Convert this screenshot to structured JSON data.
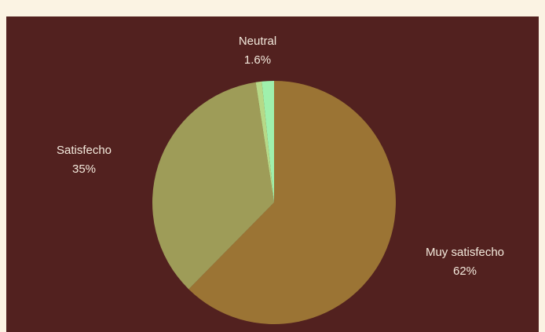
{
  "chart_data": {
    "type": "pie",
    "title": "",
    "start": "top",
    "direction": "clockwise",
    "slices": [
      {
        "label": "Muy satisfecho",
        "value": 62,
        "value_label": "62%",
        "color": "#9b7434"
      },
      {
        "label": "Satisfecho",
        "value": 35,
        "value_label": "35%",
        "color": "#9e9c58"
      },
      {
        "label": "",
        "value": 0.8,
        "value_label": "",
        "color": "#b6d987"
      },
      {
        "label": "Neutral",
        "value": 1.6,
        "value_label": "1.6%",
        "color": "#9ff0ac"
      }
    ]
  },
  "colors": {
    "page_background": "#fbf3e3",
    "panel_background": "#52211f",
    "label_text": "#f3e9dc"
  }
}
